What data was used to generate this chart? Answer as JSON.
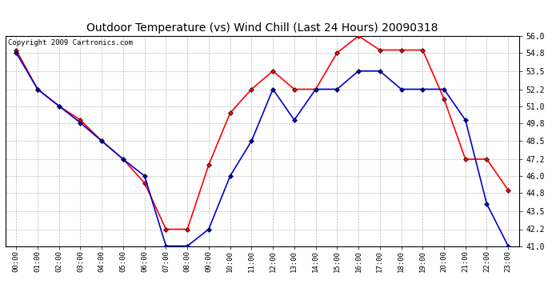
{
  "title": "Outdoor Temperature (vs) Wind Chill (Last 24 Hours) 20090318",
  "copyright": "Copyright 2009 Cartronics.com",
  "x_labels": [
    "00:00",
    "01:00",
    "02:00",
    "03:00",
    "04:00",
    "05:00",
    "06:00",
    "07:00",
    "08:00",
    "09:00",
    "10:00",
    "11:00",
    "12:00",
    "13:00",
    "14:00",
    "15:00",
    "16:00",
    "17:00",
    "18:00",
    "19:00",
    "20:00",
    "21:00",
    "22:00",
    "23:00"
  ],
  "temp_red": [
    55.0,
    52.2,
    51.0,
    50.0,
    48.5,
    47.2,
    45.5,
    42.2,
    42.2,
    46.8,
    50.5,
    52.2,
    53.5,
    52.2,
    52.2,
    54.8,
    56.0,
    55.0,
    55.0,
    55.0,
    51.5,
    47.2,
    47.2,
    45.0
  ],
  "wind_blue": [
    54.8,
    52.2,
    51.0,
    49.8,
    48.5,
    47.2,
    46.0,
    41.0,
    41.0,
    42.2,
    46.0,
    48.5,
    52.2,
    50.0,
    52.2,
    52.2,
    53.5,
    53.5,
    52.2,
    52.2,
    52.2,
    50.0,
    44.0,
    41.0
  ],
  "ylim": [
    41.0,
    56.0
  ],
  "yticks": [
    41.0,
    42.2,
    43.5,
    44.8,
    46.0,
    47.2,
    48.5,
    49.8,
    51.0,
    52.2,
    53.5,
    54.8,
    56.0
  ],
  "red_color": "#ff0000",
  "blue_color": "#0000cc",
  "bg_color": "#ffffff",
  "grid_color": "#bbbbbb",
  "title_fontsize": 10,
  "copyright_fontsize": 6.5,
  "tick_fontsize": 7,
  "xtick_fontsize": 6.5
}
